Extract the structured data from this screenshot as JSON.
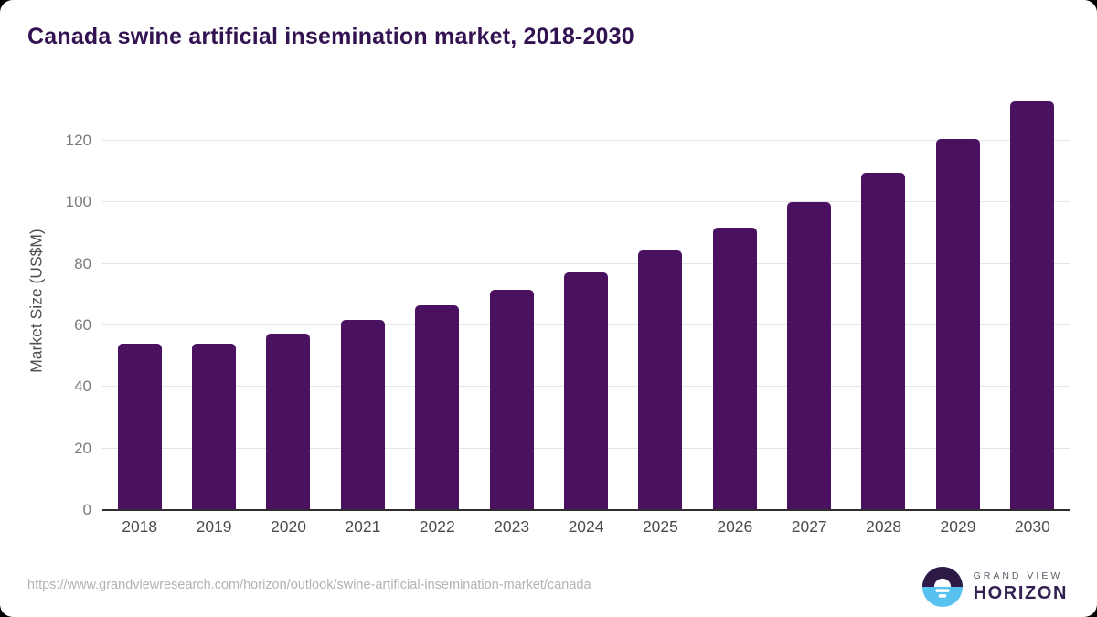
{
  "title": "Canada swine artificial insemination market, 2018-2030",
  "chart_data": {
    "type": "bar",
    "title": "Canada swine artificial insemination market, 2018-2030",
    "categories": [
      "2018",
      "2019",
      "2020",
      "2021",
      "2022",
      "2023",
      "2024",
      "2025",
      "2026",
      "2027",
      "2028",
      "2029",
      "2030"
    ],
    "values": [
      54.0,
      54.1,
      57.4,
      61.9,
      66.4,
      71.6,
      77.3,
      84.4,
      91.8,
      100.0,
      109.5,
      120.5,
      132.8
    ],
    "xlabel": "",
    "ylabel": "Market Size (US$M)",
    "ylim": [
      0,
      136
    ],
    "yticks": [
      0,
      20,
      40,
      60,
      80,
      100,
      120
    ],
    "grid": true,
    "legend": "none",
    "bar_color": "#4a1161",
    "gridline_color": "#e5e5e5",
    "axis_line_color": "#2e2e2e"
  },
  "footer": {
    "source_url": "https://www.grandviewresearch.com/horizon/outlook/swine-artificial-insemination-market/canada",
    "logo": {
      "line1": "GRAND VIEW",
      "line2": "HORIZON",
      "mark_top_color": "#2d1a47",
      "mark_bottom_color": "#57c2f0"
    }
  },
  "colors": {
    "title": "#321250",
    "background": "#ffffff"
  }
}
